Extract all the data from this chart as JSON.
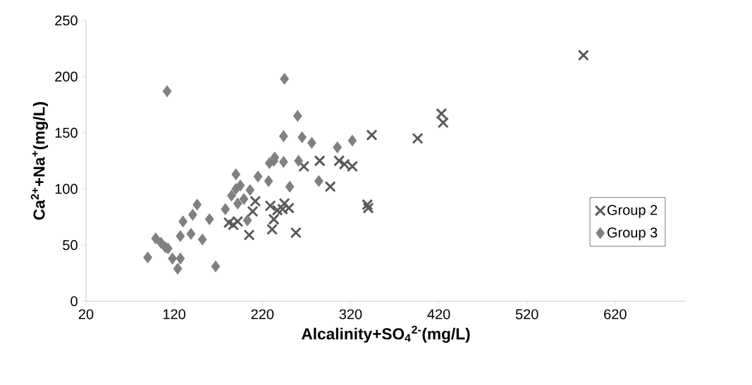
{
  "chart_data": {
    "type": "scatter",
    "xlabel": "Alcalinity+SO$_{4}$$^{2-}$(mg/L)",
    "ylabel": "Ca$^{2+}$+Na$^{+}$(mg/L)",
    "xlim": [
      20,
      700
    ],
    "ylim": [
      0,
      250
    ],
    "xticks": [
      20,
      120,
      220,
      320,
      420,
      520,
      620
    ],
    "yticks": [
      0,
      50,
      100,
      150,
      200,
      250
    ],
    "grid": false,
    "legend": "right",
    "series": [
      {
        "name": "Group 2",
        "color": "#595959",
        "marker": "cross",
        "x": [
          584,
          423,
          425,
          344,
          396,
          267,
          285,
          297,
          307,
          313,
          322,
          339,
          340,
          258,
          205,
          231,
          233,
          237,
          243,
          245,
          250,
          212,
          209,
          182,
          187,
          192,
          229
        ],
        "values": [
          219,
          167,
          159,
          148,
          145,
          120,
          125,
          102,
          125,
          122,
          120,
          86,
          83,
          61,
          59,
          64,
          73,
          81,
          82,
          87,
          83,
          89,
          80,
          70,
          68,
          71,
          85
        ]
      },
      {
        "name": "Group 3",
        "color": "#808080",
        "marker": "diamond",
        "x": [
          90,
          99,
          105,
          110,
          113,
          118,
          127,
          124,
          112,
          130,
          127,
          139,
          141,
          146,
          152,
          160,
          167,
          178,
          185,
          190,
          190,
          195,
          192,
          199,
          203,
          206,
          215,
          227,
          228,
          234,
          233,
          244,
          244,
          245,
          251,
          260,
          261,
          265,
          276,
          284,
          305,
          322
        ],
        "values": [
          39,
          56,
          52,
          48,
          47,
          38,
          38,
          29,
          187,
          71,
          58,
          60,
          77,
          86,
          55,
          73,
          31,
          82,
          94,
          113,
          100,
          103,
          87,
          91,
          72,
          99,
          111,
          107,
          123,
          128,
          125,
          124,
          147,
          198,
          102,
          165,
          125,
          146,
          141,
          107,
          137,
          143
        ]
      }
    ]
  }
}
